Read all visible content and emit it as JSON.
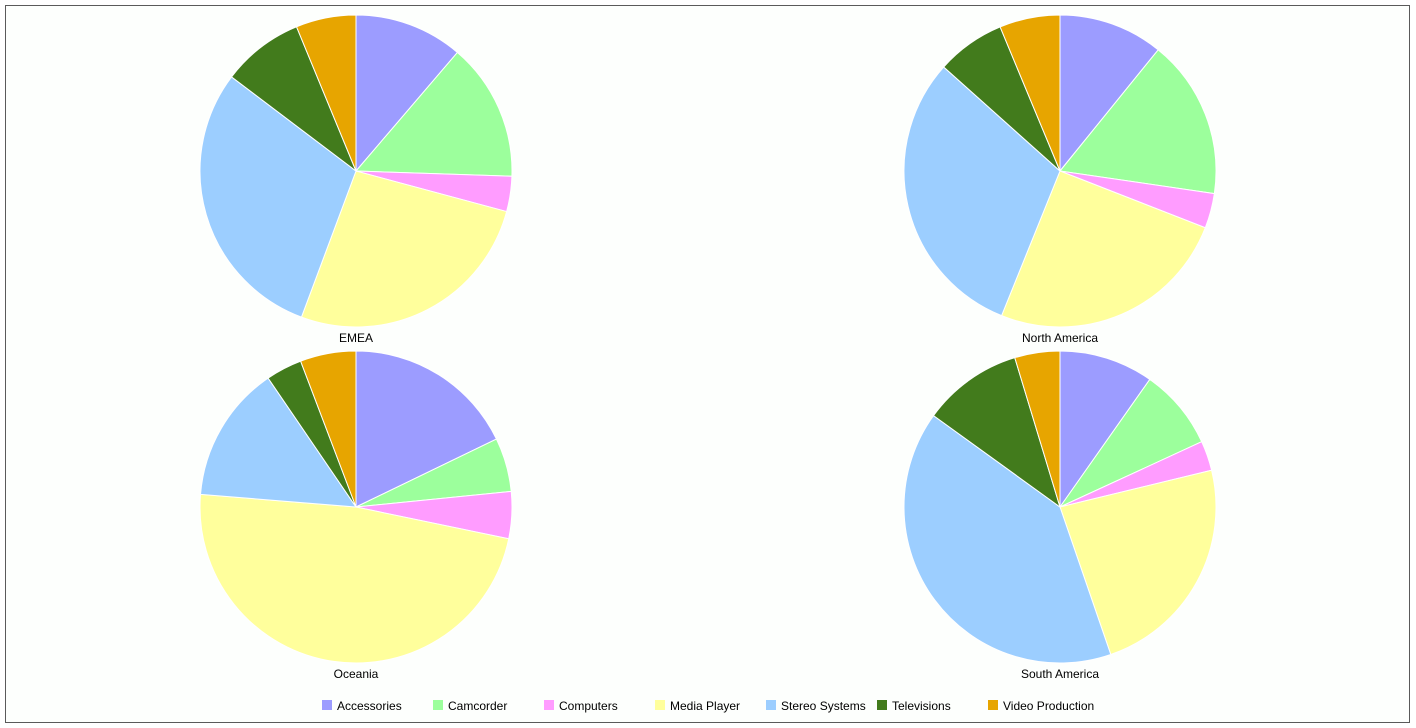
{
  "chart_data": {
    "type": "pie",
    "categories": [
      "Accessories",
      "Camcorder",
      "Computers",
      "Media Player",
      "Stereo Systems",
      "Televisions",
      "Video Production"
    ],
    "colors": [
      "#9c9cff",
      "#9cff9c",
      "#ff9cff",
      "#ffff9c",
      "#9cceff",
      "#427b1c",
      "#e7a500"
    ],
    "legend_position": "bottom",
    "pies": [
      {
        "title": "EMEA",
        "values": [
          10.5,
          13.3,
          3.4,
          24.7,
          27.6,
          7.9,
          5.8
        ]
      },
      {
        "title": "North America",
        "values": [
          10.2,
          15.5,
          3.4,
          23.7,
          28.7,
          6.7,
          5.9
        ]
      },
      {
        "title": "Oceania",
        "values": [
          17.6,
          5.5,
          4.8,
          47.4,
          14.0,
          3.7,
          5.7
        ]
      },
      {
        "title": "South America",
        "values": [
          9.8,
          8.4,
          3.1,
          23.6,
          40.4,
          10.4,
          4.7
        ]
      }
    ]
  }
}
